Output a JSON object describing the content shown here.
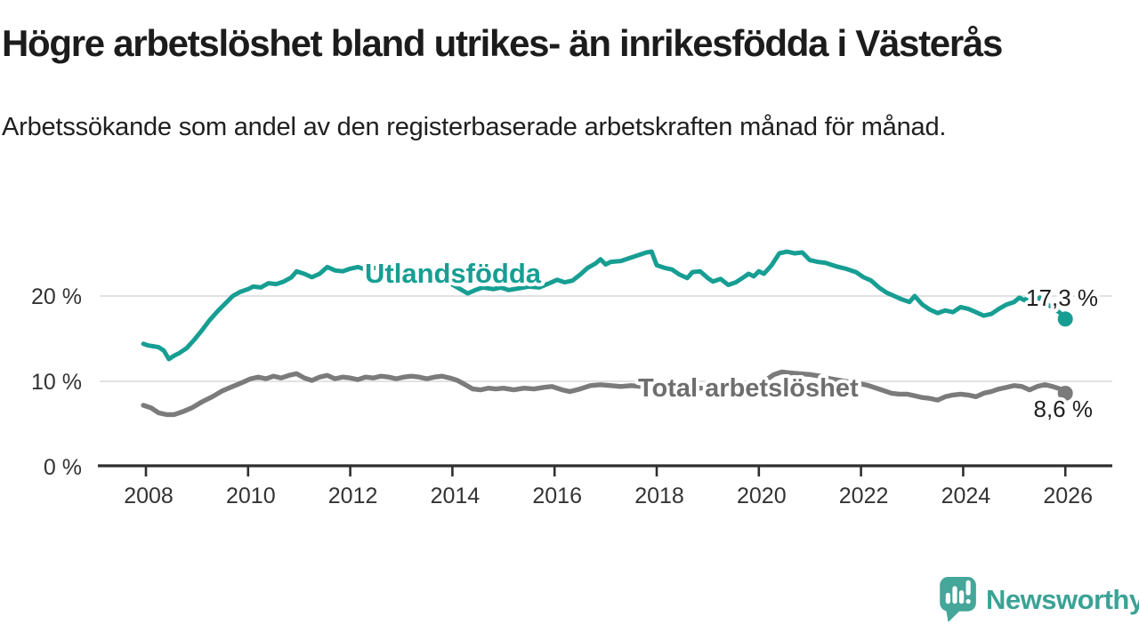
{
  "header": {
    "title": "Högre arbetslöshet bland utrikes- än inrikesfödda i Västerås",
    "subtitle": "Arbetssökande som andel av den registerbaserade arbetskraften månad för månad."
  },
  "logo": {
    "text": "Newsworthy"
  },
  "colors": {
    "teal_line": "#179e93",
    "gray_line": "#7b7b7b",
    "gray_label": "#6e6e6e",
    "grid": "#d8d8d8",
    "axis": "#2f2f2f",
    "tick_text": "#333333",
    "value_text": "#1f1f1f",
    "logo_teal": "#45a69a"
  },
  "chart_data": {
    "type": "line",
    "title": "Högre arbetslöshet bland utrikes- än inrikesfödda i Västerås",
    "subtitle": "Arbetssökande som andel av den registerbaserade arbetskraften månad för månad.",
    "xlabel": "",
    "ylabel": "",
    "grid": "horizontal",
    "xlim": [
      2007.9,
      2026.9
    ],
    "ylim": [
      0,
      27
    ],
    "x_ticks": {
      "values": [
        2008,
        2010,
        2012,
        2014,
        2016,
        2018,
        2020,
        2022,
        2024,
        2026
      ],
      "labels": [
        "2008",
        "2010",
        "2012",
        "2014",
        "2016",
        "2018",
        "2020",
        "2022",
        "2024",
        "2026"
      ]
    },
    "y_ticks": {
      "values": [
        0,
        10,
        20
      ],
      "labels": [
        "0 %",
        "10 %",
        "20 %"
      ]
    },
    "legend_position": "inline-labels",
    "series": [
      {
        "name": "Utlandsfödda",
        "color": "#179e93",
        "end_value": 17.3,
        "end_label": "17,3 %",
        "points": [
          [
            2007.95,
            14.4
          ],
          [
            2008.05,
            14.2
          ],
          [
            2008.15,
            14.1
          ],
          [
            2008.25,
            14.0
          ],
          [
            2008.35,
            13.6
          ],
          [
            2008.45,
            12.6
          ],
          [
            2008.55,
            13.0
          ],
          [
            2008.65,
            13.3
          ],
          [
            2008.8,
            13.9
          ],
          [
            2008.95,
            14.9
          ],
          [
            2009.1,
            16.0
          ],
          [
            2009.25,
            17.2
          ],
          [
            2009.4,
            18.2
          ],
          [
            2009.55,
            19.1
          ],
          [
            2009.7,
            20.0
          ],
          [
            2009.85,
            20.5
          ],
          [
            2010.0,
            20.8
          ],
          [
            2010.1,
            21.1
          ],
          [
            2010.25,
            21.0
          ],
          [
            2010.4,
            21.5
          ],
          [
            2010.55,
            21.4
          ],
          [
            2010.7,
            21.7
          ],
          [
            2010.85,
            22.2
          ],
          [
            2010.95,
            22.9
          ],
          [
            2011.1,
            22.6
          ],
          [
            2011.25,
            22.2
          ],
          [
            2011.4,
            22.6
          ],
          [
            2011.55,
            23.4
          ],
          [
            2011.7,
            23.0
          ],
          [
            2011.85,
            22.9
          ],
          [
            2012.0,
            23.2
          ],
          [
            2012.15,
            23.4
          ],
          [
            2012.3,
            23.1
          ],
          [
            2012.45,
            23.3
          ],
          [
            2012.6,
            23.2
          ],
          [
            2012.75,
            23.4
          ],
          [
            2012.95,
            23.3
          ],
          [
            2013.15,
            23.1
          ],
          [
            2013.35,
            22.8
          ],
          [
            2013.55,
            22.4
          ],
          [
            2013.75,
            21.9
          ],
          [
            2013.95,
            21.5
          ],
          [
            2014.1,
            21.0
          ],
          [
            2014.3,
            20.3
          ],
          [
            2014.45,
            20.7
          ],
          [
            2014.6,
            21.0
          ],
          [
            2014.8,
            20.8
          ],
          [
            2014.95,
            21.0
          ],
          [
            2015.1,
            20.7
          ],
          [
            2015.3,
            20.9
          ],
          [
            2015.5,
            21.1
          ],
          [
            2015.7,
            21.0
          ],
          [
            2015.9,
            21.5
          ],
          [
            2016.05,
            21.9
          ],
          [
            2016.2,
            21.6
          ],
          [
            2016.35,
            21.8
          ],
          [
            2016.5,
            22.5
          ],
          [
            2016.65,
            23.3
          ],
          [
            2016.8,
            23.8
          ],
          [
            2016.9,
            24.3
          ],
          [
            2017.0,
            23.7
          ],
          [
            2017.1,
            24.0
          ],
          [
            2017.3,
            24.1
          ],
          [
            2017.5,
            24.5
          ],
          [
            2017.65,
            24.8
          ],
          [
            2017.8,
            25.1
          ],
          [
            2017.9,
            25.2
          ],
          [
            2018.0,
            23.6
          ],
          [
            2018.15,
            23.3
          ],
          [
            2018.3,
            23.1
          ],
          [
            2018.45,
            22.5
          ],
          [
            2018.6,
            22.1
          ],
          [
            2018.7,
            22.8
          ],
          [
            2018.85,
            22.9
          ],
          [
            2019.0,
            22.1
          ],
          [
            2019.1,
            21.7
          ],
          [
            2019.25,
            22.0
          ],
          [
            2019.4,
            21.3
          ],
          [
            2019.55,
            21.6
          ],
          [
            2019.7,
            22.2
          ],
          [
            2019.8,
            22.6
          ],
          [
            2019.9,
            22.3
          ],
          [
            2020.0,
            22.9
          ],
          [
            2020.1,
            22.6
          ],
          [
            2020.25,
            23.6
          ],
          [
            2020.4,
            25.0
          ],
          [
            2020.55,
            25.2
          ],
          [
            2020.7,
            25.0
          ],
          [
            2020.85,
            25.1
          ],
          [
            2021.0,
            24.2
          ],
          [
            2021.15,
            24.0
          ],
          [
            2021.3,
            23.9
          ],
          [
            2021.5,
            23.5
          ],
          [
            2021.7,
            23.2
          ],
          [
            2021.9,
            22.8
          ],
          [
            2022.05,
            22.2
          ],
          [
            2022.2,
            21.8
          ],
          [
            2022.35,
            21.0
          ],
          [
            2022.5,
            20.4
          ],
          [
            2022.65,
            20.0
          ],
          [
            2022.8,
            19.6
          ],
          [
            2022.95,
            19.3
          ],
          [
            2023.05,
            20.0
          ],
          [
            2023.2,
            19.0
          ],
          [
            2023.35,
            18.4
          ],
          [
            2023.5,
            18.0
          ],
          [
            2023.65,
            18.3
          ],
          [
            2023.8,
            18.1
          ],
          [
            2023.95,
            18.7
          ],
          [
            2024.1,
            18.5
          ],
          [
            2024.25,
            18.1
          ],
          [
            2024.4,
            17.7
          ],
          [
            2024.55,
            17.9
          ],
          [
            2024.7,
            18.5
          ],
          [
            2024.85,
            19.0
          ],
          [
            2025.0,
            19.3
          ],
          [
            2025.1,
            19.8
          ],
          [
            2025.2,
            19.5
          ],
          [
            2025.3,
            20.0
          ],
          [
            2025.4,
            19.4
          ],
          [
            2025.5,
            19.8
          ],
          [
            2025.6,
            19.1
          ],
          [
            2025.75,
            18.7
          ],
          [
            2025.9,
            18.0
          ],
          [
            2026.0,
            17.3
          ]
        ]
      },
      {
        "name": "Total arbetslöshet",
        "color": "#7b7b7b",
        "end_value": 8.6,
        "end_label": "8,6 %",
        "points": [
          [
            2007.95,
            7.2
          ],
          [
            2008.1,
            6.9
          ],
          [
            2008.25,
            6.3
          ],
          [
            2008.4,
            6.1
          ],
          [
            2008.55,
            6.1
          ],
          [
            2008.7,
            6.4
          ],
          [
            2008.9,
            6.9
          ],
          [
            2009.1,
            7.6
          ],
          [
            2009.3,
            8.2
          ],
          [
            2009.5,
            8.9
          ],
          [
            2009.7,
            9.4
          ],
          [
            2009.9,
            9.9
          ],
          [
            2010.05,
            10.3
          ],
          [
            2010.2,
            10.5
          ],
          [
            2010.35,
            10.3
          ],
          [
            2010.5,
            10.6
          ],
          [
            2010.65,
            10.4
          ],
          [
            2010.8,
            10.7
          ],
          [
            2010.95,
            10.9
          ],
          [
            2011.1,
            10.4
          ],
          [
            2011.25,
            10.1
          ],
          [
            2011.4,
            10.5
          ],
          [
            2011.55,
            10.7
          ],
          [
            2011.7,
            10.3
          ],
          [
            2011.85,
            10.5
          ],
          [
            2012.0,
            10.4
          ],
          [
            2012.15,
            10.2
          ],
          [
            2012.3,
            10.5
          ],
          [
            2012.45,
            10.4
          ],
          [
            2012.6,
            10.6
          ],
          [
            2012.75,
            10.5
          ],
          [
            2012.9,
            10.3
          ],
          [
            2013.05,
            10.5
          ],
          [
            2013.2,
            10.6
          ],
          [
            2013.35,
            10.5
          ],
          [
            2013.5,
            10.3
          ],
          [
            2013.65,
            10.5
          ],
          [
            2013.8,
            10.6
          ],
          [
            2013.95,
            10.4
          ],
          [
            2014.1,
            10.1
          ],
          [
            2014.25,
            9.6
          ],
          [
            2014.4,
            9.1
          ],
          [
            2014.55,
            9.0
          ],
          [
            2014.7,
            9.2
          ],
          [
            2014.85,
            9.1
          ],
          [
            2015.0,
            9.2
          ],
          [
            2015.2,
            9.0
          ],
          [
            2015.4,
            9.2
          ],
          [
            2015.6,
            9.1
          ],
          [
            2015.8,
            9.3
          ],
          [
            2015.95,
            9.4
          ],
          [
            2016.15,
            9.0
          ],
          [
            2016.3,
            8.8
          ],
          [
            2016.5,
            9.1
          ],
          [
            2016.7,
            9.5
          ],
          [
            2016.9,
            9.6
          ],
          [
            2017.1,
            9.5
          ],
          [
            2017.3,
            9.4
          ],
          [
            2017.5,
            9.5
          ],
          [
            2017.7,
            9.4
          ],
          [
            2017.9,
            9.3
          ],
          [
            2018.1,
            9.3
          ],
          [
            2018.3,
            9.2
          ],
          [
            2018.5,
            9.1
          ],
          [
            2018.7,
            9.2
          ],
          [
            2018.9,
            9.2
          ],
          [
            2019.1,
            9.1
          ],
          [
            2019.3,
            9.0
          ],
          [
            2019.5,
            9.1
          ],
          [
            2019.7,
            9.2
          ],
          [
            2019.9,
            9.4
          ],
          [
            2020.1,
            10.0
          ],
          [
            2020.3,
            10.8
          ],
          [
            2020.45,
            11.1
          ],
          [
            2020.6,
            11.0
          ],
          [
            2020.8,
            10.9
          ],
          [
            2021.0,
            10.8
          ],
          [
            2021.2,
            10.6
          ],
          [
            2021.4,
            10.3
          ],
          [
            2021.6,
            10.1
          ],
          [
            2021.8,
            9.9
          ],
          [
            2022.0,
            9.7
          ],
          [
            2022.15,
            9.5
          ],
          [
            2022.3,
            9.2
          ],
          [
            2022.45,
            8.9
          ],
          [
            2022.6,
            8.6
          ],
          [
            2022.75,
            8.5
          ],
          [
            2022.9,
            8.5
          ],
          [
            2023.05,
            8.3
          ],
          [
            2023.2,
            8.1
          ],
          [
            2023.35,
            8.0
          ],
          [
            2023.5,
            7.8
          ],
          [
            2023.65,
            8.2
          ],
          [
            2023.8,
            8.4
          ],
          [
            2023.95,
            8.5
          ],
          [
            2024.1,
            8.4
          ],
          [
            2024.25,
            8.2
          ],
          [
            2024.4,
            8.6
          ],
          [
            2024.55,
            8.8
          ],
          [
            2024.7,
            9.1
          ],
          [
            2024.85,
            9.3
          ],
          [
            2025.0,
            9.5
          ],
          [
            2025.15,
            9.4
          ],
          [
            2025.3,
            9.0
          ],
          [
            2025.45,
            9.4
          ],
          [
            2025.6,
            9.6
          ],
          [
            2025.75,
            9.4
          ],
          [
            2025.9,
            9.1
          ],
          [
            2026.0,
            8.6
          ]
        ]
      }
    ]
  }
}
